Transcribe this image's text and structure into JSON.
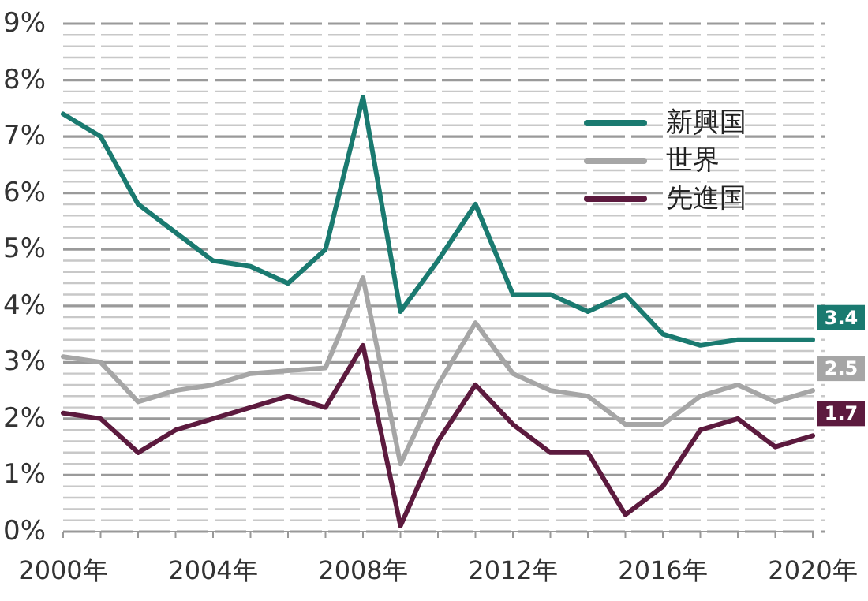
{
  "chart_data": {
    "type": "line",
    "x": [
      2000,
      2001,
      2002,
      2003,
      2004,
      2005,
      2006,
      2007,
      2008,
      2009,
      2010,
      2011,
      2012,
      2013,
      2014,
      2015,
      2016,
      2017,
      2018,
      2019,
      2020
    ],
    "series": [
      {
        "name": "新興国",
        "color": "#1a7a70",
        "values": [
          7.4,
          7.0,
          5.8,
          5.3,
          4.8,
          4.7,
          4.4,
          5.0,
          7.7,
          3.9,
          4.8,
          5.8,
          4.2,
          4.2,
          3.9,
          4.2,
          3.5,
          3.3,
          3.4,
          3.4,
          3.4
        ],
        "value_labels": [
          null,
          null,
          null,
          null,
          null,
          null,
          null,
          null,
          null,
          null,
          null,
          null,
          null,
          null,
          null,
          null,
          null,
          null,
          null,
          null,
          "3.4"
        ]
      },
      {
        "name": "世界",
        "color": "#a6a6a6",
        "values": [
          3.1,
          3.0,
          2.3,
          2.5,
          2.6,
          2.8,
          2.85,
          2.9,
          4.5,
          1.2,
          2.6,
          3.7,
          2.8,
          2.5,
          2.4,
          1.9,
          1.9,
          2.4,
          2.6,
          2.3,
          2.5
        ],
        "value_labels": [
          null,
          null,
          null,
          null,
          null,
          null,
          null,
          null,
          null,
          null,
          null,
          null,
          null,
          null,
          null,
          null,
          null,
          null,
          null,
          null,
          "2.5"
        ]
      },
      {
        "name": "先進国",
        "color": "#5c1a3e",
        "values": [
          2.1,
          2.0,
          1.4,
          1.8,
          2.0,
          2.2,
          2.4,
          2.2,
          3.3,
          0.1,
          1.6,
          2.6,
          1.9,
          1.4,
          1.4,
          0.3,
          0.8,
          1.8,
          2.0,
          1.5,
          1.7
        ],
        "value_labels": [
          null,
          null,
          null,
          null,
          null,
          null,
          null,
          null,
          null,
          null,
          null,
          null,
          null,
          null,
          null,
          null,
          null,
          null,
          null,
          null,
          "1.7"
        ]
      }
    ],
    "xlim": [
      2000,
      2020
    ],
    "xticks": [
      {
        "value": 2000,
        "label": "2000年"
      },
      {
        "value": 2001,
        "label": null
      },
      {
        "value": 2002,
        "label": null
      },
      {
        "value": 2003,
        "label": null
      },
      {
        "value": 2004,
        "label": "2004年"
      },
      {
        "value": 2005,
        "label": null
      },
      {
        "value": 2006,
        "label": null
      },
      {
        "value": 2007,
        "label": null
      },
      {
        "value": 2008,
        "label": "2008年"
      },
      {
        "value": 2009,
        "label": null
      },
      {
        "value": 2010,
        "label": null
      },
      {
        "value": 2011,
        "label": null
      },
      {
        "value": 2012,
        "label": "2012年"
      },
      {
        "value": 2013,
        "label": null
      },
      {
        "value": 2014,
        "label": null
      },
      {
        "value": 2015,
        "label": null
      },
      {
        "value": 2016,
        "label": "2016年"
      },
      {
        "value": 2017,
        "label": null
      },
      {
        "value": 2018,
        "label": null
      },
      {
        "value": 2019,
        "label": null
      },
      {
        "value": 2020,
        "label": "2020年"
      }
    ],
    "ylim": [
      0,
      9
    ],
    "yticks": [
      {
        "value": 0,
        "label": "0%"
      },
      {
        "value": 1,
        "label": "1%"
      },
      {
        "value": 2,
        "label": "2%"
      },
      {
        "value": 3,
        "label": "3%"
      },
      {
        "value": 4,
        "label": "4%"
      },
      {
        "value": 5,
        "label": "5%"
      },
      {
        "value": 6,
        "label": "6%"
      },
      {
        "value": 7,
        "label": "7%"
      },
      {
        "value": 8,
        "label": "8%"
      },
      {
        "value": 9,
        "label": "9%"
      }
    ],
    "grid": "y",
    "legend": "top right",
    "line_style": "solid"
  }
}
